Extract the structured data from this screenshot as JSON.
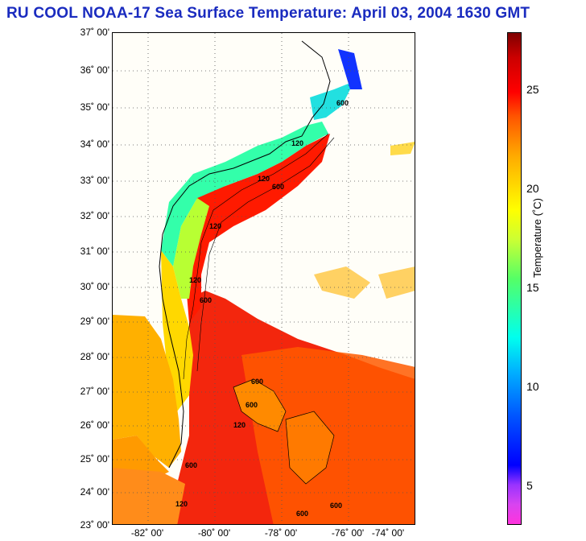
{
  "title": "RU COOL  NOAA-17  Sea Surface Temperature:  April 03, 2004 1630 GMT",
  "latitude_labels": [
    "37˚ 00'",
    "36˚ 00'",
    "35˚ 00'",
    "34˚ 00'",
    "33˚ 00'",
    "32˚ 00'",
    "31˚ 00'",
    "30˚ 00'",
    "29˚ 00'",
    "28˚ 00'",
    "27˚ 00'",
    "26˚ 00'",
    "25˚ 00'",
    "24˚ 00'",
    "23˚ 00'"
  ],
  "longitude_labels": [
    "-82˚ 00'",
    "-80˚ 00'",
    "-78˚ 00'",
    "-76˚ 00'",
    "-74˚ 00'"
  ],
  "colorbar": {
    "label": "Temperature (˚C)",
    "ticks": [
      "25",
      "20",
      "15",
      "10",
      "5"
    ],
    "range": [
      3,
      28
    ]
  },
  "contour_labels": [
    "120",
    "600"
  ],
  "colors": {
    "title": "#1a2bbf",
    "grid": "#555555"
  }
}
